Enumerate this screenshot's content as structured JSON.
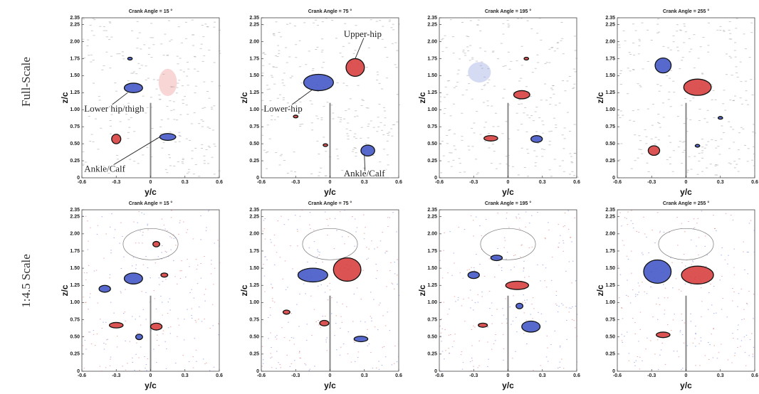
{
  "figure": {
    "row_labels": [
      "Full-Scale",
      "1:4.5 Scale"
    ]
  },
  "chart_data": [
    {
      "type": "contour",
      "title": "Crank Angle = 15 °",
      "xlabel": "y/c",
      "ylabel": "z/c",
      "xlim": [
        -0.6,
        0.6
      ],
      "ylim": [
        0,
        2.35
      ],
      "xticks": [
        -0.6,
        -0.3,
        0,
        0.3,
        0.6
      ],
      "yticks": [
        0,
        0.25,
        {
          "value": 0.5,
          "label": "0.50"
        },
        0.75,
        {
          "value": 1,
          "label": "1.00"
        },
        1.25,
        {
          "value": 1.5,
          "label": "1.50"
        },
        1.75,
        {
          "value": 2,
          "label": "2.00"
        },
        2.25,
        2.35
      ],
      "annotations": [
        "Lower hip/thigh",
        "Ankle/Calf"
      ]
    },
    {
      "type": "contour",
      "title": "Crank Angle = 75 °",
      "xlabel": "y/c",
      "ylabel": "z/c",
      "xlim": [
        -0.6,
        0.6
      ],
      "ylim": [
        0,
        2.35
      ],
      "xticks": [
        -0.6,
        -0.3,
        0,
        0.3,
        0.6
      ],
      "yticks": [
        0,
        0.25,
        {
          "value": 0.5,
          "label": "0.50"
        },
        0.75,
        {
          "value": 1,
          "label": "1.00"
        },
        1.25,
        {
          "value": 1.5,
          "label": "1.50"
        },
        1.75,
        {
          "value": 2,
          "label": "2.00"
        },
        2.25,
        2.35
      ],
      "annotations": [
        "Upper-hip",
        "Lower-hip",
        "Ankle/Calf"
      ]
    },
    {
      "type": "contour",
      "title": "Crank Angle = 195 °",
      "xlabel": "y/c",
      "ylabel": "z/c",
      "xlim": [
        -0.6,
        0.6
      ],
      "ylim": [
        0,
        2.35
      ],
      "xticks": [
        -0.6,
        -0.3,
        0,
        0.3,
        0.6
      ],
      "yticks": [
        0,
        0.25,
        {
          "value": 0.5,
          "label": "0.50"
        },
        0.75,
        {
          "value": 1,
          "label": "1.00"
        },
        1.25,
        {
          "value": 1.5,
          "label": "1.50"
        },
        1.75,
        {
          "value": 2,
          "label": "2.00"
        },
        2.25,
        2.35
      ]
    },
    {
      "type": "contour",
      "title": "Crank Angle = 255 °",
      "xlabel": "y/c",
      "ylabel": "z/c",
      "xlim": [
        -0.6,
        0.6
      ],
      "ylim": [
        0,
        2.35
      ],
      "xticks": [
        -0.6,
        -0.3,
        0,
        0.3,
        0.6
      ],
      "yticks": [
        0,
        0.25,
        {
          "value": 0.5,
          "label": "0.50"
        },
        0.75,
        {
          "value": 1,
          "label": "1.00"
        },
        1.25,
        {
          "value": 1.5,
          "label": "1.50"
        },
        1.75,
        {
          "value": 2,
          "label": "2.00"
        },
        2.25,
        2.35
      ]
    },
    {
      "type": "contour",
      "title": "Crank Angle = 15 °",
      "xlabel": "y/c",
      "ylabel": "z/c",
      "xlim": [
        -0.6,
        0.6
      ],
      "ylim": [
        0,
        2.35
      ],
      "xticks": [
        -0.6,
        -0.3,
        0,
        0.3,
        0.6
      ],
      "yticks": [
        0,
        0.25,
        {
          "value": 0.5,
          "label": "0.50"
        },
        0.75,
        {
          "value": 1,
          "label": "1.00"
        },
        1.25,
        {
          "value": 1.5,
          "label": "1.50"
        },
        1.75,
        {
          "value": 2,
          "label": "2.00"
        },
        2.25,
        2.35
      ]
    },
    {
      "type": "contour",
      "title": "Crank Angle = 75 °",
      "xlabel": "y/c",
      "ylabel": "z/c",
      "xlim": [
        -0.6,
        0.6
      ],
      "ylim": [
        0,
        2.35
      ],
      "xticks": [
        -0.6,
        -0.3,
        0,
        0.3,
        0.6
      ],
      "yticks": [
        0,
        0.25,
        {
          "value": 0.5,
          "label": "0.50"
        },
        0.75,
        {
          "value": 1,
          "label": "1.00"
        },
        1.25,
        {
          "value": 1.5,
          "label": "1.50"
        },
        1.75,
        {
          "value": 2,
          "label": "2.00"
        },
        2.25,
        2.35
      ]
    },
    {
      "type": "contour",
      "title": "Crank Angle = 195 °",
      "xlabel": "y/c",
      "ylabel": "z/c",
      "xlim": [
        -0.6,
        0.6
      ],
      "ylim": [
        0,
        2.35
      ],
      "xticks": [
        -0.6,
        -0.3,
        0,
        0.3,
        0.6
      ],
      "yticks": [
        0,
        0.25,
        {
          "value": 0.5,
          "label": "0.50"
        },
        0.75,
        {
          "value": 1,
          "label": "1.00"
        },
        1.25,
        {
          "value": 1.5,
          "label": "1.50"
        },
        1.75,
        {
          "value": 2,
          "label": "2.00"
        },
        2.25,
        2.35
      ]
    },
    {
      "type": "contour",
      "title": "Crank Angle = 255 °",
      "xlabel": "y/c",
      "ylabel": "z/c",
      "xlim": [
        -0.6,
        0.6
      ],
      "ylim": [
        0,
        2.35
      ],
      "xticks": [
        -0.6,
        -0.3,
        0,
        0.3,
        0.6
      ],
      "yticks": [
        0,
        0.25,
        {
          "value": 0.5,
          "label": "0.50"
        },
        0.75,
        {
          "value": 1,
          "label": "1.00"
        },
        1.25,
        {
          "value": 1.5,
          "label": "1.50"
        },
        1.75,
        {
          "value": 2,
          "label": "2.00"
        },
        2.25,
        2.35
      ]
    }
  ]
}
